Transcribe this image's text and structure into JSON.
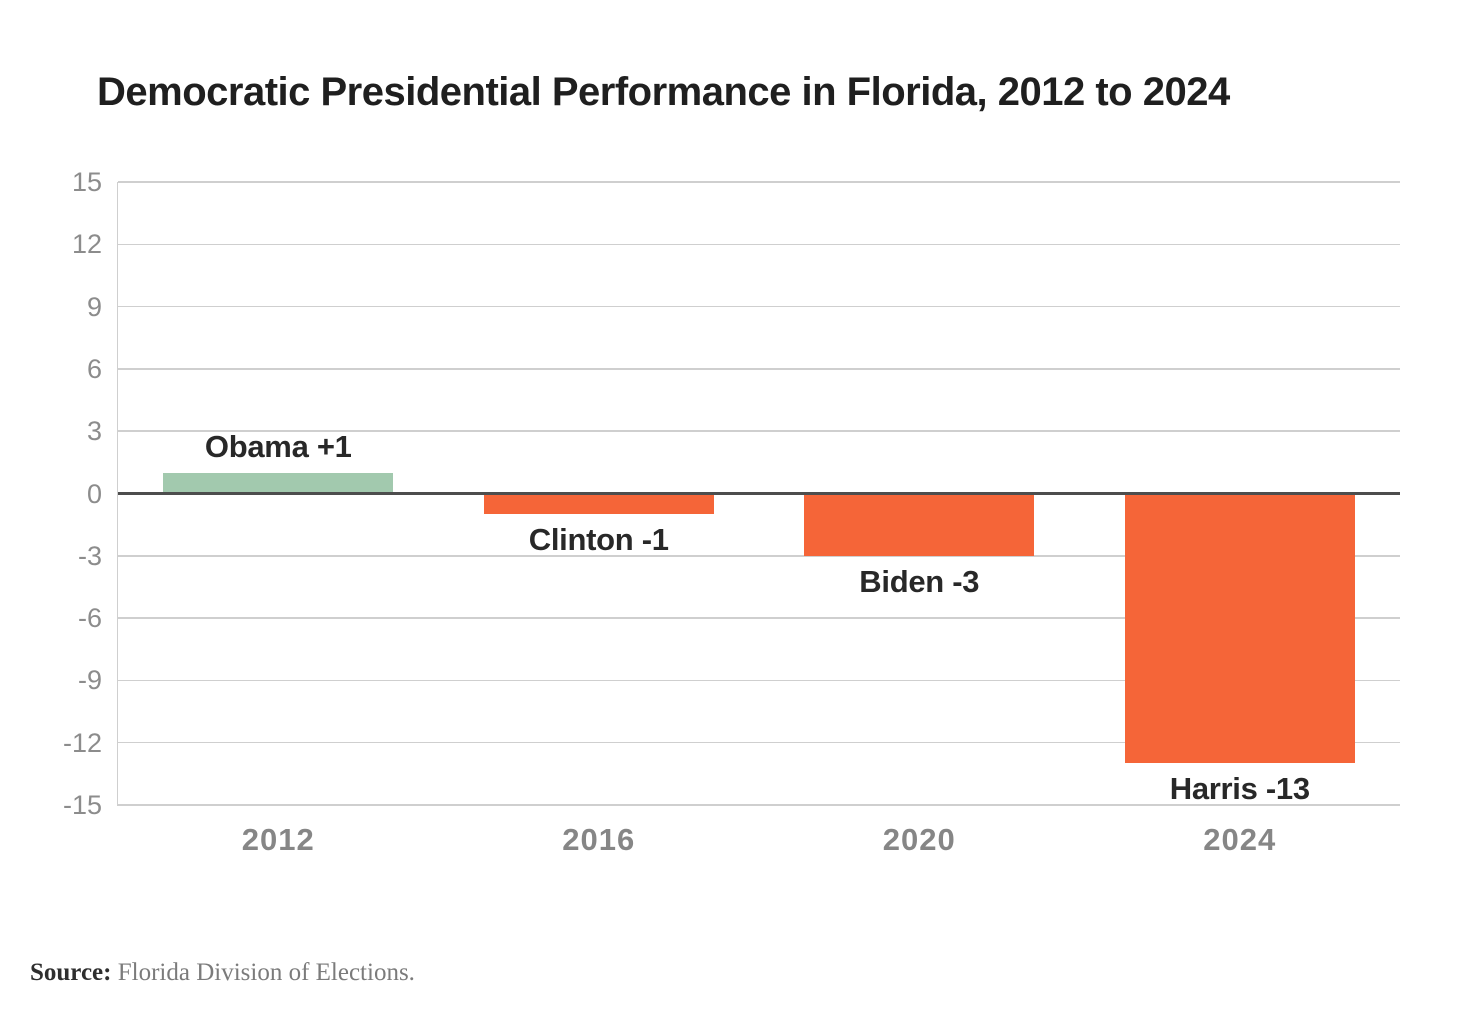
{
  "title": "Democratic Presidential Performance in Florida, 2012 to 2024",
  "source": {
    "label": "Source:",
    "text": " Florida Division of Elections."
  },
  "colors": {
    "positive_bar": "#a2c9ae",
    "negative_bar": "#f56538",
    "zero_line": "#4d4d4d",
    "gridline": "#cfcfcf",
    "tick_text": "#8c8c8c",
    "label_text": "#282828"
  },
  "chart_data": {
    "type": "bar",
    "title": "Democratic Presidential Performance in Florida, 2012 to 2024",
    "categories": [
      "2012",
      "2016",
      "2020",
      "2024"
    ],
    "values": [
      1,
      -1,
      -3,
      -13
    ],
    "bar_labels": [
      "Obama +1",
      "Clinton -1",
      "Biden -3",
      "Harris -13"
    ],
    "xlabel": "",
    "ylabel": "",
    "ylim": [
      -15,
      15
    ],
    "yticks": [
      15,
      12,
      9,
      6,
      3,
      0,
      -3,
      -6,
      -9,
      -12,
      -15
    ],
    "grid": true,
    "legend": false,
    "positive_color": "#a2c9ae",
    "negative_color": "#f56538"
  }
}
